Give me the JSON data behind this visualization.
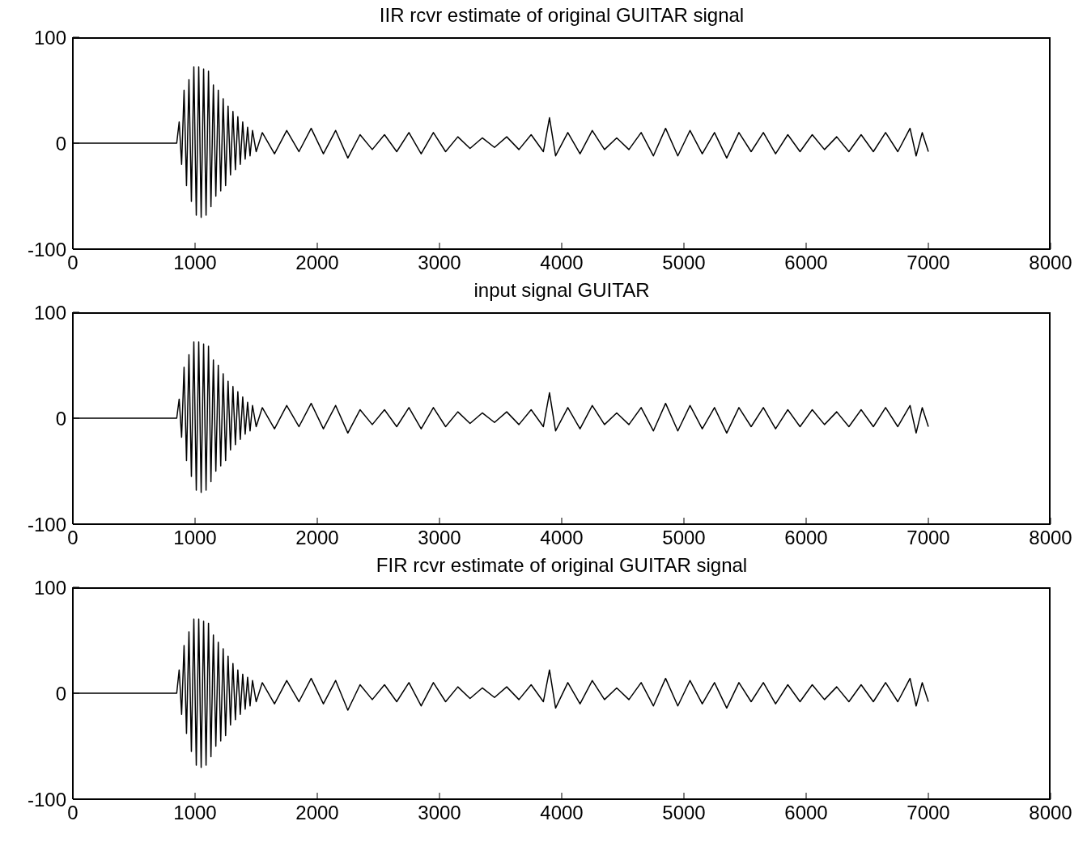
{
  "chart_data": [
    {
      "type": "line",
      "title": "IIR rcvr estimate of original GUITAR signal",
      "color": "#000000",
      "xlim": [
        0,
        8000
      ],
      "xticks": [
        0,
        1000,
        2000,
        3000,
        4000,
        5000,
        6000,
        7000,
        8000
      ],
      "ylim": [
        -100,
        100
      ],
      "yticks": [
        -100,
        0,
        100
      ],
      "x": [
        0,
        850,
        870,
        890,
        910,
        930,
        950,
        970,
        990,
        1010,
        1030,
        1050,
        1070,
        1090,
        1110,
        1130,
        1150,
        1170,
        1190,
        1210,
        1230,
        1250,
        1270,
        1290,
        1310,
        1330,
        1350,
        1370,
        1390,
        1410,
        1430,
        1450,
        1470,
        1500,
        1550,
        1650,
        1750,
        1850,
        1950,
        2050,
        2150,
        2250,
        2350,
        2450,
        2550,
        2650,
        2750,
        2850,
        2950,
        3050,
        3150,
        3250,
        3350,
        3450,
        3550,
        3650,
        3750,
        3850,
        3900,
        3950,
        4050,
        4150,
        4250,
        4350,
        4450,
        4550,
        4650,
        4750,
        4850,
        4950,
        5050,
        5150,
        5250,
        5350,
        5450,
        5550,
        5650,
        5750,
        5850,
        5950,
        6050,
        6150,
        6250,
        6350,
        6450,
        6550,
        6650,
        6750,
        6850,
        6900,
        6950,
        7000
      ],
      "values": [
        0,
        0,
        20,
        -20,
        50,
        -40,
        60,
        -55,
        72,
        -68,
        72,
        -70,
        70,
        -68,
        68,
        -60,
        55,
        -50,
        50,
        -45,
        42,
        -40,
        35,
        -30,
        30,
        -25,
        25,
        -20,
        20,
        -15,
        15,
        -12,
        12,
        -8,
        10,
        -10,
        12,
        -8,
        14,
        -10,
        12,
        -14,
        8,
        -6,
        8,
        -8,
        10,
        -10,
        10,
        -8,
        6,
        -5,
        5,
        -4,
        6,
        -6,
        8,
        -8,
        24,
        -12,
        10,
        -10,
        12,
        -6,
        5,
        -6,
        10,
        -12,
        14,
        -12,
        12,
        -10,
        10,
        -14,
        10,
        -8,
        10,
        -10,
        8,
        -8,
        8,
        -6,
        6,
        -8,
        8,
        -8,
        10,
        -8,
        14,
        -12,
        10,
        -8
      ]
    },
    {
      "type": "line",
      "title": "input signal GUITAR",
      "color": "#000000",
      "xlim": [
        0,
        8000
      ],
      "xticks": [
        0,
        1000,
        2000,
        3000,
        4000,
        5000,
        6000,
        7000,
        8000
      ],
      "ylim": [
        -100,
        100
      ],
      "yticks": [
        -100,
        0,
        100
      ],
      "x": [
        0,
        850,
        870,
        890,
        910,
        930,
        950,
        970,
        990,
        1010,
        1030,
        1050,
        1070,
        1090,
        1110,
        1130,
        1150,
        1170,
        1190,
        1210,
        1230,
        1250,
        1270,
        1290,
        1310,
        1330,
        1350,
        1370,
        1390,
        1410,
        1430,
        1450,
        1470,
        1500,
        1550,
        1650,
        1750,
        1850,
        1950,
        2050,
        2150,
        2250,
        2350,
        2450,
        2550,
        2650,
        2750,
        2850,
        2950,
        3050,
        3150,
        3250,
        3350,
        3450,
        3550,
        3650,
        3750,
        3850,
        3900,
        3950,
        4050,
        4150,
        4250,
        4350,
        4450,
        4550,
        4650,
        4750,
        4850,
        4950,
        5050,
        5150,
        5250,
        5350,
        5450,
        5550,
        5650,
        5750,
        5850,
        5950,
        6050,
        6150,
        6250,
        6350,
        6450,
        6550,
        6650,
        6750,
        6850,
        6900,
        6950,
        7000
      ],
      "values": [
        0,
        0,
        18,
        -18,
        48,
        -40,
        60,
        -55,
        72,
        -68,
        72,
        -70,
        70,
        -68,
        68,
        -60,
        55,
        -50,
        50,
        -45,
        42,
        -40,
        35,
        -30,
        30,
        -25,
        25,
        -20,
        20,
        -15,
        15,
        -12,
        12,
        -8,
        10,
        -10,
        12,
        -8,
        14,
        -10,
        12,
        -14,
        8,
        -6,
        8,
        -8,
        10,
        -10,
        10,
        -8,
        6,
        -5,
        5,
        -4,
        6,
        -6,
        8,
        -8,
        24,
        -12,
        10,
        -10,
        12,
        -6,
        5,
        -6,
        10,
        -12,
        14,
        -12,
        12,
        -10,
        10,
        -14,
        10,
        -8,
        10,
        -10,
        8,
        -8,
        8,
        -6,
        6,
        -8,
        8,
        -8,
        10,
        -8,
        12,
        -14,
        10,
        -8
      ]
    },
    {
      "type": "line",
      "title": "FIR rcvr estimate of original GUITAR signal",
      "color": "#000000",
      "xlim": [
        0,
        8000
      ],
      "xticks": [
        0,
        1000,
        2000,
        3000,
        4000,
        5000,
        6000,
        7000,
        8000
      ],
      "ylim": [
        -100,
        100
      ],
      "yticks": [
        -100,
        0,
        100
      ],
      "x": [
        0,
        850,
        870,
        890,
        910,
        930,
        950,
        970,
        990,
        1010,
        1030,
        1050,
        1070,
        1090,
        1110,
        1130,
        1150,
        1170,
        1190,
        1210,
        1230,
        1250,
        1270,
        1290,
        1310,
        1330,
        1350,
        1370,
        1390,
        1410,
        1430,
        1450,
        1470,
        1500,
        1550,
        1650,
        1750,
        1850,
        1950,
        2050,
        2150,
        2250,
        2350,
        2450,
        2550,
        2650,
        2750,
        2850,
        2950,
        3050,
        3150,
        3250,
        3350,
        3450,
        3550,
        3650,
        3750,
        3850,
        3900,
        3950,
        4050,
        4150,
        4250,
        4350,
        4450,
        4550,
        4650,
        4750,
        4850,
        4950,
        5050,
        5150,
        5250,
        5350,
        5450,
        5550,
        5650,
        5750,
        5850,
        5950,
        6050,
        6150,
        6250,
        6350,
        6450,
        6550,
        6650,
        6750,
        6850,
        6900,
        6950,
        7000
      ],
      "values": [
        0,
        0,
        22,
        -20,
        45,
        -38,
        58,
        -55,
        70,
        -68,
        70,
        -70,
        68,
        -68,
        66,
        -60,
        55,
        -50,
        48,
        -45,
        42,
        -40,
        35,
        -30,
        28,
        -25,
        22,
        -20,
        18,
        -15,
        15,
        -12,
        12,
        -8,
        10,
        -10,
        12,
        -8,
        14,
        -10,
        12,
        -16,
        8,
        -6,
        8,
        -8,
        10,
        -12,
        10,
        -8,
        6,
        -5,
        5,
        -4,
        6,
        -6,
        8,
        -8,
        22,
        -14,
        10,
        -10,
        12,
        -6,
        5,
        -6,
        10,
        -12,
        14,
        -12,
        12,
        -10,
        10,
        -14,
        10,
        -8,
        10,
        -10,
        8,
        -8,
        8,
        -6,
        6,
        -8,
        8,
        -8,
        10,
        -8,
        14,
        -12,
        10,
        -8
      ]
    }
  ]
}
